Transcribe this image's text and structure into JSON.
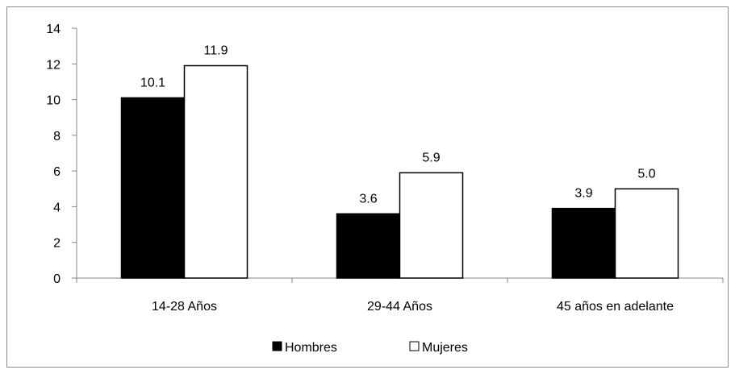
{
  "chart_data": {
    "type": "bar",
    "title": "",
    "xlabel": "",
    "ylabel": "",
    "categories": [
      "14-28 Años",
      "29-44 Años",
      "45 años en adelante"
    ],
    "series": [
      {
        "name": "Hombres",
        "values": [
          10.1,
          3.6,
          3.9
        ],
        "labels": [
          "10.1",
          "3.6",
          "3.9"
        ],
        "color": "#000000"
      },
      {
        "name": "Mujeres",
        "values": [
          11.9,
          5.9,
          5.0
        ],
        "labels": [
          "11.9",
          "5.9",
          "5.0"
        ],
        "color": "#ffffff"
      }
    ],
    "ylim": [
      0,
      14
    ],
    "yticks": [
      0,
      2,
      4,
      6,
      8,
      10,
      12,
      14
    ],
    "grid": false,
    "legend_position": "bottom"
  }
}
